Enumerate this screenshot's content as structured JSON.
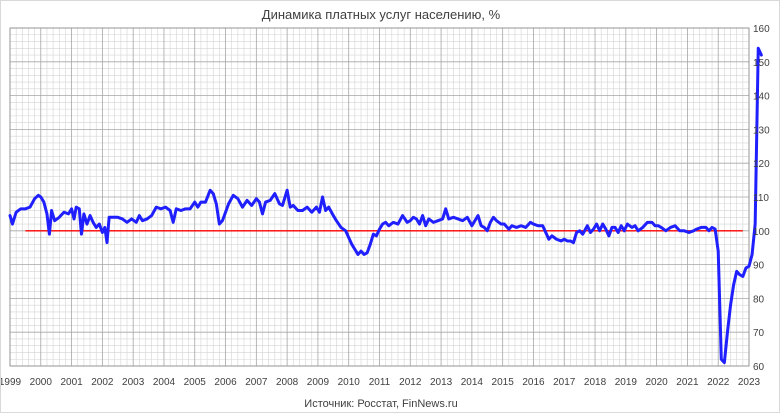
{
  "chart_data": {
    "type": "line",
    "title": "Динамика платных услуг населению, %",
    "source": "Источник: Росстат, FinNews.ru",
    "xlabel": "",
    "ylabel": "",
    "x_ticks": [
      "1999",
      "2000",
      "2001",
      "2002",
      "2003",
      "2004",
      "2005",
      "2006",
      "2007",
      "2008",
      "2009",
      "2010",
      "2011",
      "2012",
      "2013",
      "2014",
      "2015",
      "2016",
      "2017",
      "2018",
      "2019",
      "2020",
      "2021",
      "2022",
      "2023"
    ],
    "xlim": [
      1999,
      2023
    ],
    "ylim": [
      60,
      160
    ],
    "y_ticks": [
      60,
      70,
      80,
      90,
      100,
      110,
      120,
      130,
      140,
      150,
      160
    ],
    "y_axis_position": "right",
    "grid": true,
    "legend": "none",
    "colors": {
      "series": "#1f1fff",
      "reference": "#ff0000",
      "grid_major": "#a6a6a6",
      "grid_minor": "#d4d4d4"
    },
    "reference_line": {
      "y": 100,
      "x_range": [
        1999.5,
        2022.8
      ]
    },
    "series": [
      {
        "values": [
          [
            1999.0,
            104.5
          ],
          [
            1999.08,
            102.0
          ],
          [
            1999.2,
            105.5
          ],
          [
            1999.35,
            106.5
          ],
          [
            1999.5,
            106.5
          ],
          [
            1999.65,
            107.0
          ],
          [
            1999.8,
            109.5
          ],
          [
            1999.92,
            110.5
          ],
          [
            2000.0,
            110.0
          ],
          [
            2000.1,
            108.5
          ],
          [
            2000.2,
            105.0
          ],
          [
            2000.28,
            99.0
          ],
          [
            2000.35,
            106.0
          ],
          [
            2000.45,
            103.0
          ],
          [
            2000.6,
            104.0
          ],
          [
            2000.75,
            105.5
          ],
          [
            2000.9,
            105.0
          ],
          [
            2001.0,
            106.5
          ],
          [
            2001.08,
            103.5
          ],
          [
            2001.15,
            107.0
          ],
          [
            2001.25,
            106.5
          ],
          [
            2001.32,
            99.0
          ],
          [
            2001.4,
            105.0
          ],
          [
            2001.5,
            102.0
          ],
          [
            2001.6,
            104.5
          ],
          [
            2001.7,
            102.5
          ],
          [
            2001.8,
            101.0
          ],
          [
            2001.9,
            102.0
          ],
          [
            2002.0,
            99.5
          ],
          [
            2002.08,
            101.0
          ],
          [
            2002.15,
            96.5
          ],
          [
            2002.22,
            104.0
          ],
          [
            2002.35,
            104.0
          ],
          [
            2002.5,
            104.0
          ],
          [
            2002.65,
            103.5
          ],
          [
            2002.8,
            102.5
          ],
          [
            2002.95,
            103.5
          ],
          [
            2003.1,
            102.5
          ],
          [
            2003.2,
            104.5
          ],
          [
            2003.3,
            103.0
          ],
          [
            2003.45,
            103.5
          ],
          [
            2003.6,
            104.5
          ],
          [
            2003.75,
            107.0
          ],
          [
            2003.9,
            106.5
          ],
          [
            2004.05,
            107.0
          ],
          [
            2004.2,
            106.0
          ],
          [
            2004.3,
            102.5
          ],
          [
            2004.4,
            106.5
          ],
          [
            2004.55,
            106.0
          ],
          [
            2004.7,
            106.5
          ],
          [
            2004.85,
            106.5
          ],
          [
            2005.0,
            108.5
          ],
          [
            2005.1,
            107.0
          ],
          [
            2005.2,
            108.5
          ],
          [
            2005.35,
            108.5
          ],
          [
            2005.5,
            112.0
          ],
          [
            2005.6,
            111.0
          ],
          [
            2005.7,
            108.0
          ],
          [
            2005.8,
            102.0
          ],
          [
            2005.9,
            103.0
          ],
          [
            2006.0,
            105.5
          ],
          [
            2006.1,
            108.0
          ],
          [
            2006.25,
            110.5
          ],
          [
            2006.4,
            109.5
          ],
          [
            2006.55,
            107.0
          ],
          [
            2006.7,
            109.0
          ],
          [
            2006.85,
            107.5
          ],
          [
            2007.0,
            109.5
          ],
          [
            2007.1,
            108.5
          ],
          [
            2007.2,
            105.0
          ],
          [
            2007.3,
            108.5
          ],
          [
            2007.45,
            109.0
          ],
          [
            2007.6,
            111.0
          ],
          [
            2007.75,
            108.0
          ],
          [
            2007.85,
            107.5
          ],
          [
            2008.0,
            112.0
          ],
          [
            2008.1,
            107.0
          ],
          [
            2008.2,
            107.5
          ],
          [
            2008.35,
            106.0
          ],
          [
            2008.5,
            106.0
          ],
          [
            2008.65,
            107.0
          ],
          [
            2008.8,
            105.5
          ],
          [
            2008.95,
            107.0
          ],
          [
            2009.05,
            105.5
          ],
          [
            2009.15,
            110.0
          ],
          [
            2009.25,
            106.0
          ],
          [
            2009.35,
            107.0
          ],
          [
            2009.5,
            104.5
          ],
          [
            2009.6,
            103.0
          ],
          [
            2009.75,
            101.0
          ],
          [
            2009.9,
            100.0
          ],
          [
            2010.0,
            98.0
          ],
          [
            2010.1,
            96.0
          ],
          [
            2010.2,
            94.5
          ],
          [
            2010.3,
            93.0
          ],
          [
            2010.4,
            94.0
          ],
          [
            2010.5,
            93.0
          ],
          [
            2010.6,
            93.5
          ],
          [
            2010.7,
            96.0
          ],
          [
            2010.8,
            99.0
          ],
          [
            2010.9,
            98.5
          ],
          [
            2011.0,
            100.5
          ],
          [
            2011.1,
            102.0
          ],
          [
            2011.2,
            102.5
          ],
          [
            2011.3,
            101.5
          ],
          [
            2011.45,
            102.5
          ],
          [
            2011.6,
            102.0
          ],
          [
            2011.75,
            104.5
          ],
          [
            2011.9,
            102.5
          ],
          [
            2012.0,
            103.0
          ],
          [
            2012.1,
            104.0
          ],
          [
            2012.2,
            103.5
          ],
          [
            2012.3,
            102.0
          ],
          [
            2012.4,
            104.5
          ],
          [
            2012.5,
            101.5
          ],
          [
            2012.6,
            103.5
          ],
          [
            2012.75,
            102.5
          ],
          [
            2012.9,
            103.0
          ],
          [
            2013.05,
            103.5
          ],
          [
            2013.15,
            106.5
          ],
          [
            2013.25,
            103.5
          ],
          [
            2013.4,
            104.0
          ],
          [
            2013.55,
            103.5
          ],
          [
            2013.7,
            103.0
          ],
          [
            2013.85,
            104.0
          ],
          [
            2014.0,
            101.5
          ],
          [
            2014.1,
            103.0
          ],
          [
            2014.2,
            104.5
          ],
          [
            2014.3,
            101.5
          ],
          [
            2014.4,
            101.0
          ],
          [
            2014.5,
            100.0
          ],
          [
            2014.6,
            102.5
          ],
          [
            2014.7,
            104.0
          ],
          [
            2014.8,
            103.0
          ],
          [
            2014.95,
            102.0
          ],
          [
            2015.05,
            102.0
          ],
          [
            2015.2,
            100.5
          ],
          [
            2015.3,
            101.5
          ],
          [
            2015.45,
            101.0
          ],
          [
            2015.6,
            101.5
          ],
          [
            2015.75,
            101.0
          ],
          [
            2015.9,
            102.5
          ],
          [
            2016.0,
            102.0
          ],
          [
            2016.15,
            101.5
          ],
          [
            2016.3,
            101.5
          ],
          [
            2016.4,
            99.5
          ],
          [
            2016.5,
            97.5
          ],
          [
            2016.6,
            98.5
          ],
          [
            2016.75,
            97.5
          ],
          [
            2016.9,
            97.0
          ],
          [
            2017.0,
            97.5
          ],
          [
            2017.1,
            97.0
          ],
          [
            2017.2,
            97.0
          ],
          [
            2017.3,
            96.5
          ],
          [
            2017.4,
            99.5
          ],
          [
            2017.5,
            100.0
          ],
          [
            2017.6,
            99.0
          ],
          [
            2017.75,
            101.5
          ],
          [
            2017.85,
            99.5
          ],
          [
            2017.95,
            100.5
          ],
          [
            2018.05,
            102.0
          ],
          [
            2018.15,
            100.0
          ],
          [
            2018.25,
            102.0
          ],
          [
            2018.35,
            100.5
          ],
          [
            2018.45,
            98.5
          ],
          [
            2018.55,
            101.0
          ],
          [
            2018.65,
            101.0
          ],
          [
            2018.75,
            99.5
          ],
          [
            2018.85,
            101.5
          ],
          [
            2018.95,
            100.0
          ],
          [
            2019.05,
            102.0
          ],
          [
            2019.2,
            101.0
          ],
          [
            2019.3,
            101.5
          ],
          [
            2019.4,
            100.0
          ],
          [
            2019.55,
            101.0
          ],
          [
            2019.7,
            102.5
          ],
          [
            2019.85,
            102.5
          ],
          [
            2019.95,
            101.5
          ],
          [
            2020.05,
            101.5
          ],
          [
            2020.15,
            101.0
          ],
          [
            2020.3,
            100.0
          ],
          [
            2020.45,
            101.0
          ],
          [
            2020.6,
            101.5
          ],
          [
            2020.75,
            100.0
          ],
          [
            2020.9,
            100.0
          ],
          [
            2021.05,
            99.5
          ],
          [
            2021.2,
            100.0
          ],
          [
            2021.3,
            100.5
          ],
          [
            2021.45,
            101.0
          ],
          [
            2021.6,
            101.0
          ],
          [
            2021.7,
            100.0
          ],
          [
            2021.8,
            101.0
          ],
          [
            2021.9,
            100.5
          ],
          [
            2022.0,
            94.0
          ],
          [
            2022.1,
            62.0
          ],
          [
            2022.2,
            61.0
          ],
          [
            2022.3,
            70.0
          ],
          [
            2022.4,
            78.0
          ],
          [
            2022.5,
            84.0
          ],
          [
            2022.6,
            88.0
          ],
          [
            2022.7,
            87.0
          ],
          [
            2022.8,
            86.5
          ],
          [
            2022.9,
            89.0
          ],
          [
            2023.0,
            89.5
          ],
          [
            2023.1,
            93.0
          ],
          [
            2023.2,
            102.0
          ],
          [
            2023.3,
            154.0
          ],
          [
            2023.4,
            152.0
          ]
        ]
      }
    ]
  }
}
